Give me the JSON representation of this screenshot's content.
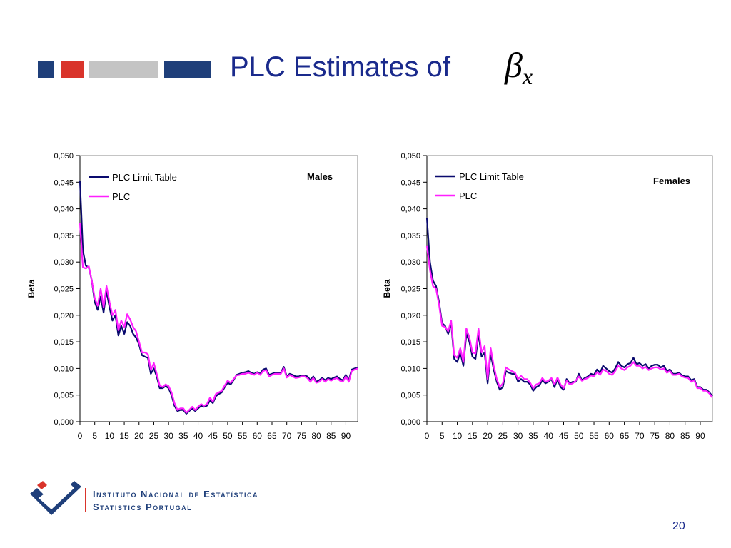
{
  "slide": {
    "title": "PLC Estimates of",
    "title_symbol": "β",
    "title_symbol_subscript": "x",
    "page_number": "20",
    "title_color": "#1a2a8c",
    "deco_colors": [
      "#1f3f7a",
      "#d9342b",
      "#c4c4c4",
      "#1f3f7a"
    ]
  },
  "logo": {
    "line1": "Instituto Nacional de Estatística",
    "line2": "Statistics Portugal"
  },
  "chart_data": [
    {
      "type": "line",
      "annotation": "Males",
      "ylabel": "Beta",
      "xlabel": "",
      "ylim": [
        0,
        0.05
      ],
      "y_ticks": [
        "0,000",
        "0,005",
        "0,010",
        "0,015",
        "0,020",
        "0,025",
        "0,030",
        "0,035",
        "0,040",
        "0,045",
        "0,050"
      ],
      "x_ticks": [
        "0",
        "5",
        "10",
        "15",
        "20",
        "25",
        "30",
        "35",
        "40",
        "45",
        "50",
        "55",
        "60",
        "65",
        "70",
        "75",
        "80",
        "85",
        "90"
      ],
      "x_range": [
        0,
        94
      ],
      "legend": "top-left",
      "series": [
        {
          "name": "PLC Limit Table",
          "color": "#0a0a6e",
          "values": [
            0.0453,
            0.0322,
            0.0293,
            0.029,
            0.0265,
            0.0225,
            0.021,
            0.0235,
            0.0205,
            0.0245,
            0.0215,
            0.019,
            0.02,
            0.0162,
            0.018,
            0.0165,
            0.0187,
            0.018,
            0.0165,
            0.0158,
            0.0145,
            0.0125,
            0.0122,
            0.012,
            0.009,
            0.01,
            0.0085,
            0.0063,
            0.0063,
            0.0067,
            0.0063,
            0.005,
            0.003,
            0.002,
            0.0022,
            0.0022,
            0.0015,
            0.002,
            0.0025,
            0.002,
            0.0025,
            0.003,
            0.0028,
            0.003,
            0.004,
            0.0035,
            0.0048,
            0.0052,
            0.0055,
            0.0065,
            0.0073,
            0.007,
            0.0078,
            0.0088,
            0.009,
            0.0092,
            0.0093,
            0.0095,
            0.0092,
            0.009,
            0.0093,
            0.009,
            0.0098,
            0.01,
            0.0088,
            0.009,
            0.0092,
            0.0092,
            0.0092,
            0.0103,
            0.0085,
            0.009,
            0.0088,
            0.0085,
            0.0085,
            0.0087,
            0.0087,
            0.0085,
            0.0078,
            0.0085,
            0.0075,
            0.0078,
            0.0082,
            0.0078,
            0.0082,
            0.008,
            0.0083,
            0.0085,
            0.008,
            0.0078,
            0.0088,
            0.0078,
            0.0098,
            0.01,
            0.0102
          ]
        },
        {
          "name": "PLC",
          "color": "#ff1fff",
          "values": [
            0.0373,
            0.029,
            0.0288,
            0.0292,
            0.0265,
            0.0232,
            0.0218,
            0.025,
            0.0215,
            0.0255,
            0.0225,
            0.02,
            0.021,
            0.0172,
            0.019,
            0.0178,
            0.0202,
            0.0192,
            0.0178,
            0.017,
            0.015,
            0.013,
            0.013,
            0.0127,
            0.0097,
            0.011,
            0.009,
            0.0068,
            0.0065,
            0.007,
            0.0067,
            0.0055,
            0.0035,
            0.0022,
            0.0025,
            0.0025,
            0.0017,
            0.0022,
            0.0028,
            0.0022,
            0.0028,
            0.0033,
            0.003,
            0.0033,
            0.0045,
            0.0038,
            0.0052,
            0.0055,
            0.0058,
            0.0068,
            0.0077,
            0.0073,
            0.008,
            0.0087,
            0.0088,
            0.009,
            0.009,
            0.0092,
            0.009,
            0.0088,
            0.0092,
            0.0088,
            0.0095,
            0.0097,
            0.0085,
            0.0088,
            0.009,
            0.009,
            0.009,
            0.01,
            0.0083,
            0.0088,
            0.0085,
            0.0082,
            0.0083,
            0.0085,
            0.0085,
            0.0082,
            0.0075,
            0.0082,
            0.0073,
            0.0075,
            0.008,
            0.0075,
            0.008,
            0.0077,
            0.008,
            0.0082,
            0.0077,
            0.0075,
            0.0085,
            0.0075,
            0.0095,
            0.0098,
            0.01
          ]
        }
      ]
    },
    {
      "type": "line",
      "annotation": "Females",
      "ylabel": "Beta",
      "xlabel": "",
      "ylim": [
        0,
        0.05
      ],
      "y_ticks": [
        "0,000",
        "0,005",
        "0,010",
        "0,015",
        "0,020",
        "0,025",
        "0,030",
        "0,035",
        "0,040",
        "0,045",
        "0,050"
      ],
      "x_ticks": [
        "0",
        "5",
        "10",
        "15",
        "20",
        "25",
        "30",
        "35",
        "40",
        "45",
        "50",
        "55",
        "60",
        "65",
        "70",
        "75",
        "80",
        "85",
        "90"
      ],
      "x_range": [
        0,
        94
      ],
      "legend": "top-left",
      "series": [
        {
          "name": "PLC Limit Table",
          "color": "#0a0a6e",
          "values": [
            0.0383,
            0.03,
            0.0265,
            0.0255,
            0.0225,
            0.0185,
            0.018,
            0.0165,
            0.0185,
            0.0118,
            0.0112,
            0.013,
            0.0105,
            0.0165,
            0.015,
            0.0122,
            0.0118,
            0.0165,
            0.0122,
            0.013,
            0.0072,
            0.0128,
            0.0098,
            0.0075,
            0.006,
            0.0065,
            0.0095,
            0.0092,
            0.009,
            0.009,
            0.0075,
            0.008,
            0.0075,
            0.0075,
            0.007,
            0.0058,
            0.0065,
            0.0068,
            0.0078,
            0.0072,
            0.0075,
            0.008,
            0.0065,
            0.008,
            0.0065,
            0.006,
            0.008,
            0.0072,
            0.0075,
            0.0075,
            0.009,
            0.0078,
            0.0082,
            0.0085,
            0.009,
            0.0088,
            0.0098,
            0.0092,
            0.0105,
            0.01,
            0.0095,
            0.0092,
            0.01,
            0.0112,
            0.0105,
            0.0102,
            0.0108,
            0.011,
            0.012,
            0.0108,
            0.011,
            0.0105,
            0.0108,
            0.01,
            0.0105,
            0.0107,
            0.0107,
            0.0102,
            0.0105,
            0.0095,
            0.0098,
            0.009,
            0.009,
            0.0092,
            0.0087,
            0.0085,
            0.0085,
            0.0078,
            0.008,
            0.0065,
            0.0065,
            0.006,
            0.006,
            0.0055,
            0.0048
          ]
        },
        {
          "name": "PLC",
          "color": "#ff1fff",
          "values": [
            0.033,
            0.0285,
            0.0255,
            0.025,
            0.022,
            0.018,
            0.0178,
            0.017,
            0.019,
            0.0125,
            0.012,
            0.0138,
            0.0112,
            0.0175,
            0.0158,
            0.013,
            0.0128,
            0.0175,
            0.013,
            0.0142,
            0.008,
            0.0138,
            0.0105,
            0.008,
            0.0065,
            0.0072,
            0.0102,
            0.0098,
            0.0095,
            0.0092,
            0.008,
            0.0086,
            0.008,
            0.008,
            0.0073,
            0.0063,
            0.007,
            0.0072,
            0.0082,
            0.0075,
            0.0077,
            0.0082,
            0.007,
            0.0083,
            0.007,
            0.0063,
            0.0077,
            0.007,
            0.0072,
            0.0077,
            0.0085,
            0.0077,
            0.008,
            0.0082,
            0.0087,
            0.0085,
            0.0093,
            0.0088,
            0.0098,
            0.0095,
            0.009,
            0.0088,
            0.0095,
            0.0105,
            0.01,
            0.0097,
            0.0102,
            0.0105,
            0.0112,
            0.0105,
            0.0105,
            0.01,
            0.0103,
            0.0097,
            0.01,
            0.0102,
            0.0102,
            0.0098,
            0.01,
            0.0092,
            0.0095,
            0.0088,
            0.0088,
            0.009,
            0.0085,
            0.0083,
            0.0082,
            0.0075,
            0.0078,
            0.0063,
            0.0063,
            0.0058,
            0.0058,
            0.0053,
            0.0045
          ]
        }
      ]
    }
  ]
}
